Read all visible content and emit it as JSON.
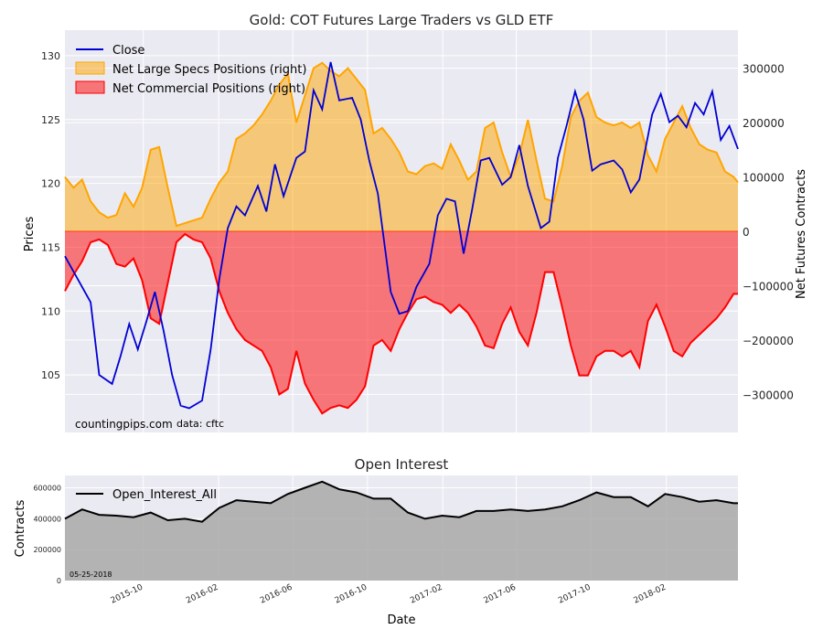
{
  "chart_data": [
    {
      "type": "line",
      "title": "Gold: COT Futures Large Traders vs GLD ETF",
      "ylabel": "Prices",
      "y2label": "Net Futures Contracts",
      "ylim": [
        100.5,
        132
      ],
      "y2lim": [
        -370000,
        370000
      ],
      "yticks": [
        105,
        110,
        115,
        120,
        125,
        130
      ],
      "y2ticks": [
        -300000,
        -200000,
        -100000,
        0,
        100000,
        200000,
        300000
      ],
      "y2tick_labels": [
        "−300000",
        "−200000",
        "−100000",
        "0",
        "100000",
        "200000",
        "300000"
      ],
      "x_range": [
        "2015-05-26",
        "2018-05-29"
      ],
      "grid": true,
      "legend": "top-left",
      "series": [
        {
          "name": "Close",
          "kind": "line",
          "axis": "left",
          "color": "#0000d4",
          "x": [
            "2015-05-26",
            "2015-06-16",
            "2015-07-07",
            "2015-07-21",
            "2015-08-11",
            "2015-08-25",
            "2015-09-08",
            "2015-09-22",
            "2015-10-06",
            "2015-10-20",
            "2015-11-03",
            "2015-11-17",
            "2015-12-01",
            "2015-12-15",
            "2016-01-05",
            "2016-01-19",
            "2016-02-02",
            "2016-02-16",
            "2016-03-01",
            "2016-03-15",
            "2016-04-05",
            "2016-04-19",
            "2016-05-03",
            "2016-05-17",
            "2016-06-07",
            "2016-06-21",
            "2016-07-05",
            "2016-07-19",
            "2016-08-02",
            "2016-08-16",
            "2016-09-06",
            "2016-09-20",
            "2016-10-04",
            "2016-10-18",
            "2016-11-08",
            "2016-11-22",
            "2016-12-06",
            "2016-12-20",
            "2017-01-10",
            "2017-01-24",
            "2017-02-07",
            "2017-02-21",
            "2017-03-07",
            "2017-03-21",
            "2017-04-04",
            "2017-04-18",
            "2017-05-09",
            "2017-05-23",
            "2017-06-06",
            "2017-06-20",
            "2017-07-11",
            "2017-07-25",
            "2017-08-08",
            "2017-08-22",
            "2017-09-05",
            "2017-09-19",
            "2017-10-03",
            "2017-10-17",
            "2017-11-07",
            "2017-11-21",
            "2017-12-05",
            "2017-12-19",
            "2018-01-09",
            "2018-01-23",
            "2018-02-06",
            "2018-02-20",
            "2018-03-06",
            "2018-03-20",
            "2018-04-03",
            "2018-04-17",
            "2018-05-01",
            "2018-05-15",
            "2018-05-29"
          ],
          "values": [
            114.3,
            112.5,
            110.7,
            105.0,
            104.3,
            106.5,
            109.0,
            107.0,
            109.2,
            111.5,
            108.5,
            105.0,
            102.6,
            102.4,
            103.0,
            107.0,
            112.5,
            116.5,
            118.2,
            117.5,
            119.8,
            117.8,
            121.5,
            119.0,
            122.0,
            122.5,
            127.3,
            125.8,
            129.5,
            126.5,
            126.7,
            125.0,
            121.8,
            119.2,
            111.5,
            109.8,
            110.0,
            111.9,
            113.7,
            117.5,
            118.8,
            118.6,
            114.5,
            118.0,
            121.8,
            122.0,
            119.9,
            120.5,
            123.0,
            119.8,
            116.5,
            117.0,
            122.0,
            124.5,
            127.2,
            125.0,
            121.0,
            121.5,
            121.8,
            121.1,
            119.3,
            120.3,
            125.4,
            127.0,
            124.8,
            125.3,
            124.4,
            126.3,
            125.4,
            127.2,
            123.4,
            124.5,
            122.7
          ]
        },
        {
          "name": "Net Large Specs Positions (right)",
          "kind": "area",
          "axis": "right",
          "color": "#ffa500",
          "x": [
            "2015-05-26",
            "2015-06-09",
            "2015-06-23",
            "2015-07-07",
            "2015-07-21",
            "2015-08-04",
            "2015-08-18",
            "2015-09-01",
            "2015-09-15",
            "2015-09-29",
            "2015-10-13",
            "2015-10-27",
            "2015-11-10",
            "2015-11-24",
            "2015-12-08",
            "2015-12-22",
            "2016-01-05",
            "2016-01-19",
            "2016-02-02",
            "2016-02-16",
            "2016-03-01",
            "2016-03-15",
            "2016-03-29",
            "2016-04-12",
            "2016-04-26",
            "2016-05-10",
            "2016-05-24",
            "2016-06-07",
            "2016-06-21",
            "2016-07-05",
            "2016-07-19",
            "2016-08-02",
            "2016-08-16",
            "2016-08-30",
            "2016-09-13",
            "2016-09-27",
            "2016-10-11",
            "2016-10-25",
            "2016-11-08",
            "2016-11-22",
            "2016-12-06",
            "2016-12-20",
            "2017-01-03",
            "2017-01-17",
            "2017-01-31",
            "2017-02-14",
            "2017-02-28",
            "2017-03-14",
            "2017-03-28",
            "2017-04-11",
            "2017-04-25",
            "2017-05-09",
            "2017-05-23",
            "2017-06-06",
            "2017-06-20",
            "2017-07-04",
            "2017-07-18",
            "2017-08-01",
            "2017-08-15",
            "2017-08-29",
            "2017-09-12",
            "2017-09-26",
            "2017-10-10",
            "2017-10-24",
            "2017-11-07",
            "2017-11-21",
            "2017-12-05",
            "2017-12-19",
            "2018-01-02",
            "2018-01-16",
            "2018-01-30",
            "2018-02-13",
            "2018-02-27",
            "2018-03-13",
            "2018-03-27",
            "2018-04-10",
            "2018-04-24",
            "2018-05-08",
            "2018-05-22",
            "2018-05-29"
          ],
          "values": [
            100000,
            80000,
            95000,
            55000,
            35000,
            25000,
            30000,
            70000,
            45000,
            80000,
            150000,
            155000,
            80000,
            10000,
            15000,
            20000,
            25000,
            60000,
            90000,
            110000,
            170000,
            180000,
            195000,
            215000,
            240000,
            270000,
            290000,
            200000,
            250000,
            300000,
            310000,
            295000,
            285000,
            300000,
            280000,
            260000,
            180000,
            190000,
            170000,
            145000,
            110000,
            105000,
            120000,
            125000,
            115000,
            160000,
            130000,
            95000,
            110000,
            190000,
            200000,
            145000,
            100000,
            140000,
            205000,
            130000,
            60000,
            55000,
            120000,
            210000,
            240000,
            255000,
            210000,
            200000,
            195000,
            200000,
            190000,
            200000,
            140000,
            110000,
            170000,
            200000,
            230000,
            190000,
            160000,
            150000,
            145000,
            110000,
            100000,
            90000
          ]
        },
        {
          "name": "Net Commercial Positions (right)",
          "kind": "area",
          "axis": "right",
          "color": "#ff0000",
          "x": [
            "2015-05-26",
            "2015-06-09",
            "2015-06-23",
            "2015-07-07",
            "2015-07-21",
            "2015-08-04",
            "2015-08-18",
            "2015-09-01",
            "2015-09-15",
            "2015-09-29",
            "2015-10-13",
            "2015-10-27",
            "2015-11-10",
            "2015-11-24",
            "2015-12-08",
            "2015-12-22",
            "2016-01-05",
            "2016-01-19",
            "2016-02-02",
            "2016-02-16",
            "2016-03-01",
            "2016-03-15",
            "2016-03-29",
            "2016-04-12",
            "2016-04-26",
            "2016-05-10",
            "2016-05-24",
            "2016-06-07",
            "2016-06-21",
            "2016-07-05",
            "2016-07-19",
            "2016-08-02",
            "2016-08-16",
            "2016-08-30",
            "2016-09-13",
            "2016-09-27",
            "2016-10-11",
            "2016-10-25",
            "2016-11-08",
            "2016-11-22",
            "2016-12-06",
            "2016-12-20",
            "2017-01-03",
            "2017-01-17",
            "2017-01-31",
            "2017-02-14",
            "2017-02-28",
            "2017-03-14",
            "2017-03-28",
            "2017-04-11",
            "2017-04-25",
            "2017-05-09",
            "2017-05-23",
            "2017-06-06",
            "2017-06-20",
            "2017-07-04",
            "2017-07-18",
            "2017-08-01",
            "2017-08-15",
            "2017-08-29",
            "2017-09-12",
            "2017-09-26",
            "2017-10-10",
            "2017-10-24",
            "2017-11-07",
            "2017-11-21",
            "2017-12-05",
            "2017-12-19",
            "2018-01-02",
            "2018-01-16",
            "2018-01-30",
            "2018-02-13",
            "2018-02-27",
            "2018-03-13",
            "2018-03-27",
            "2018-04-10",
            "2018-04-24",
            "2018-05-08",
            "2018-05-22",
            "2018-05-29"
          ],
          "values": [
            -110000,
            -80000,
            -55000,
            -20000,
            -15000,
            -25000,
            -60000,
            -65000,
            -50000,
            -90000,
            -160000,
            -170000,
            -95000,
            -20000,
            -5000,
            -15000,
            -20000,
            -50000,
            -110000,
            -150000,
            -180000,
            -200000,
            -210000,
            -220000,
            -250000,
            -300000,
            -290000,
            -220000,
            -280000,
            -310000,
            -335000,
            -325000,
            -320000,
            -325000,
            -310000,
            -285000,
            -210000,
            -200000,
            -220000,
            -180000,
            -150000,
            -125000,
            -120000,
            -130000,
            -135000,
            -150000,
            -135000,
            -150000,
            -175000,
            -210000,
            -215000,
            -170000,
            -140000,
            -185000,
            -210000,
            -150000,
            -75000,
            -75000,
            -140000,
            -210000,
            -265000,
            -265000,
            -230000,
            -220000,
            -220000,
            -230000,
            -220000,
            -250000,
            -165000,
            -135000,
            -175000,
            -220000,
            -230000,
            -205000,
            -190000,
            -175000,
            -160000,
            -140000,
            -115000,
            -115000
          ]
        }
      ],
      "annotations": [
        "countingpips.com",
        "data: cftc"
      ]
    },
    {
      "type": "area",
      "title": "Open Interest",
      "ylabel": "Contracts",
      "xlabel": "Date",
      "ylim": [
        0,
        680000
      ],
      "yticks": [
        0,
        200000,
        400000,
        600000
      ],
      "xticks": [
        "2015-10",
        "2016-02",
        "2016-06",
        "2016-10",
        "2017-02",
        "2017-06",
        "2017-10",
        "2018-02"
      ],
      "x_range": [
        "2015-05-26",
        "2018-05-29"
      ],
      "grid": true,
      "legend": "top-left",
      "series": [
        {
          "name": "Open_Interest_All",
          "color": "#000000",
          "x": [
            "2015-05-26",
            "2015-06-23",
            "2015-07-21",
            "2015-08-18",
            "2015-09-15",
            "2015-10-13",
            "2015-11-10",
            "2015-12-08",
            "2016-01-05",
            "2016-02-02",
            "2016-03-01",
            "2016-03-29",
            "2016-04-26",
            "2016-05-24",
            "2016-06-21",
            "2016-07-19",
            "2016-08-16",
            "2016-09-13",
            "2016-10-11",
            "2016-11-08",
            "2016-12-06",
            "2017-01-03",
            "2017-01-31",
            "2017-02-28",
            "2017-03-28",
            "2017-04-25",
            "2017-05-23",
            "2017-06-20",
            "2017-07-18",
            "2017-08-15",
            "2017-09-12",
            "2017-10-10",
            "2017-11-07",
            "2017-12-05",
            "2018-01-02",
            "2018-01-30",
            "2018-02-27",
            "2018-03-27",
            "2018-04-24",
            "2018-05-22",
            "2018-05-29"
          ],
          "values": [
            400000,
            460000,
            425000,
            420000,
            410000,
            440000,
            390000,
            400000,
            380000,
            470000,
            520000,
            510000,
            500000,
            560000,
            600000,
            640000,
            590000,
            570000,
            530000,
            530000,
            440000,
            400000,
            420000,
            410000,
            450000,
            450000,
            460000,
            450000,
            460000,
            480000,
            520000,
            570000,
            540000,
            540000,
            480000,
            560000,
            540000,
            510000,
            520000,
            500000,
            500000
          ]
        }
      ],
      "annotations": [
        "05-25-2018"
      ]
    }
  ]
}
